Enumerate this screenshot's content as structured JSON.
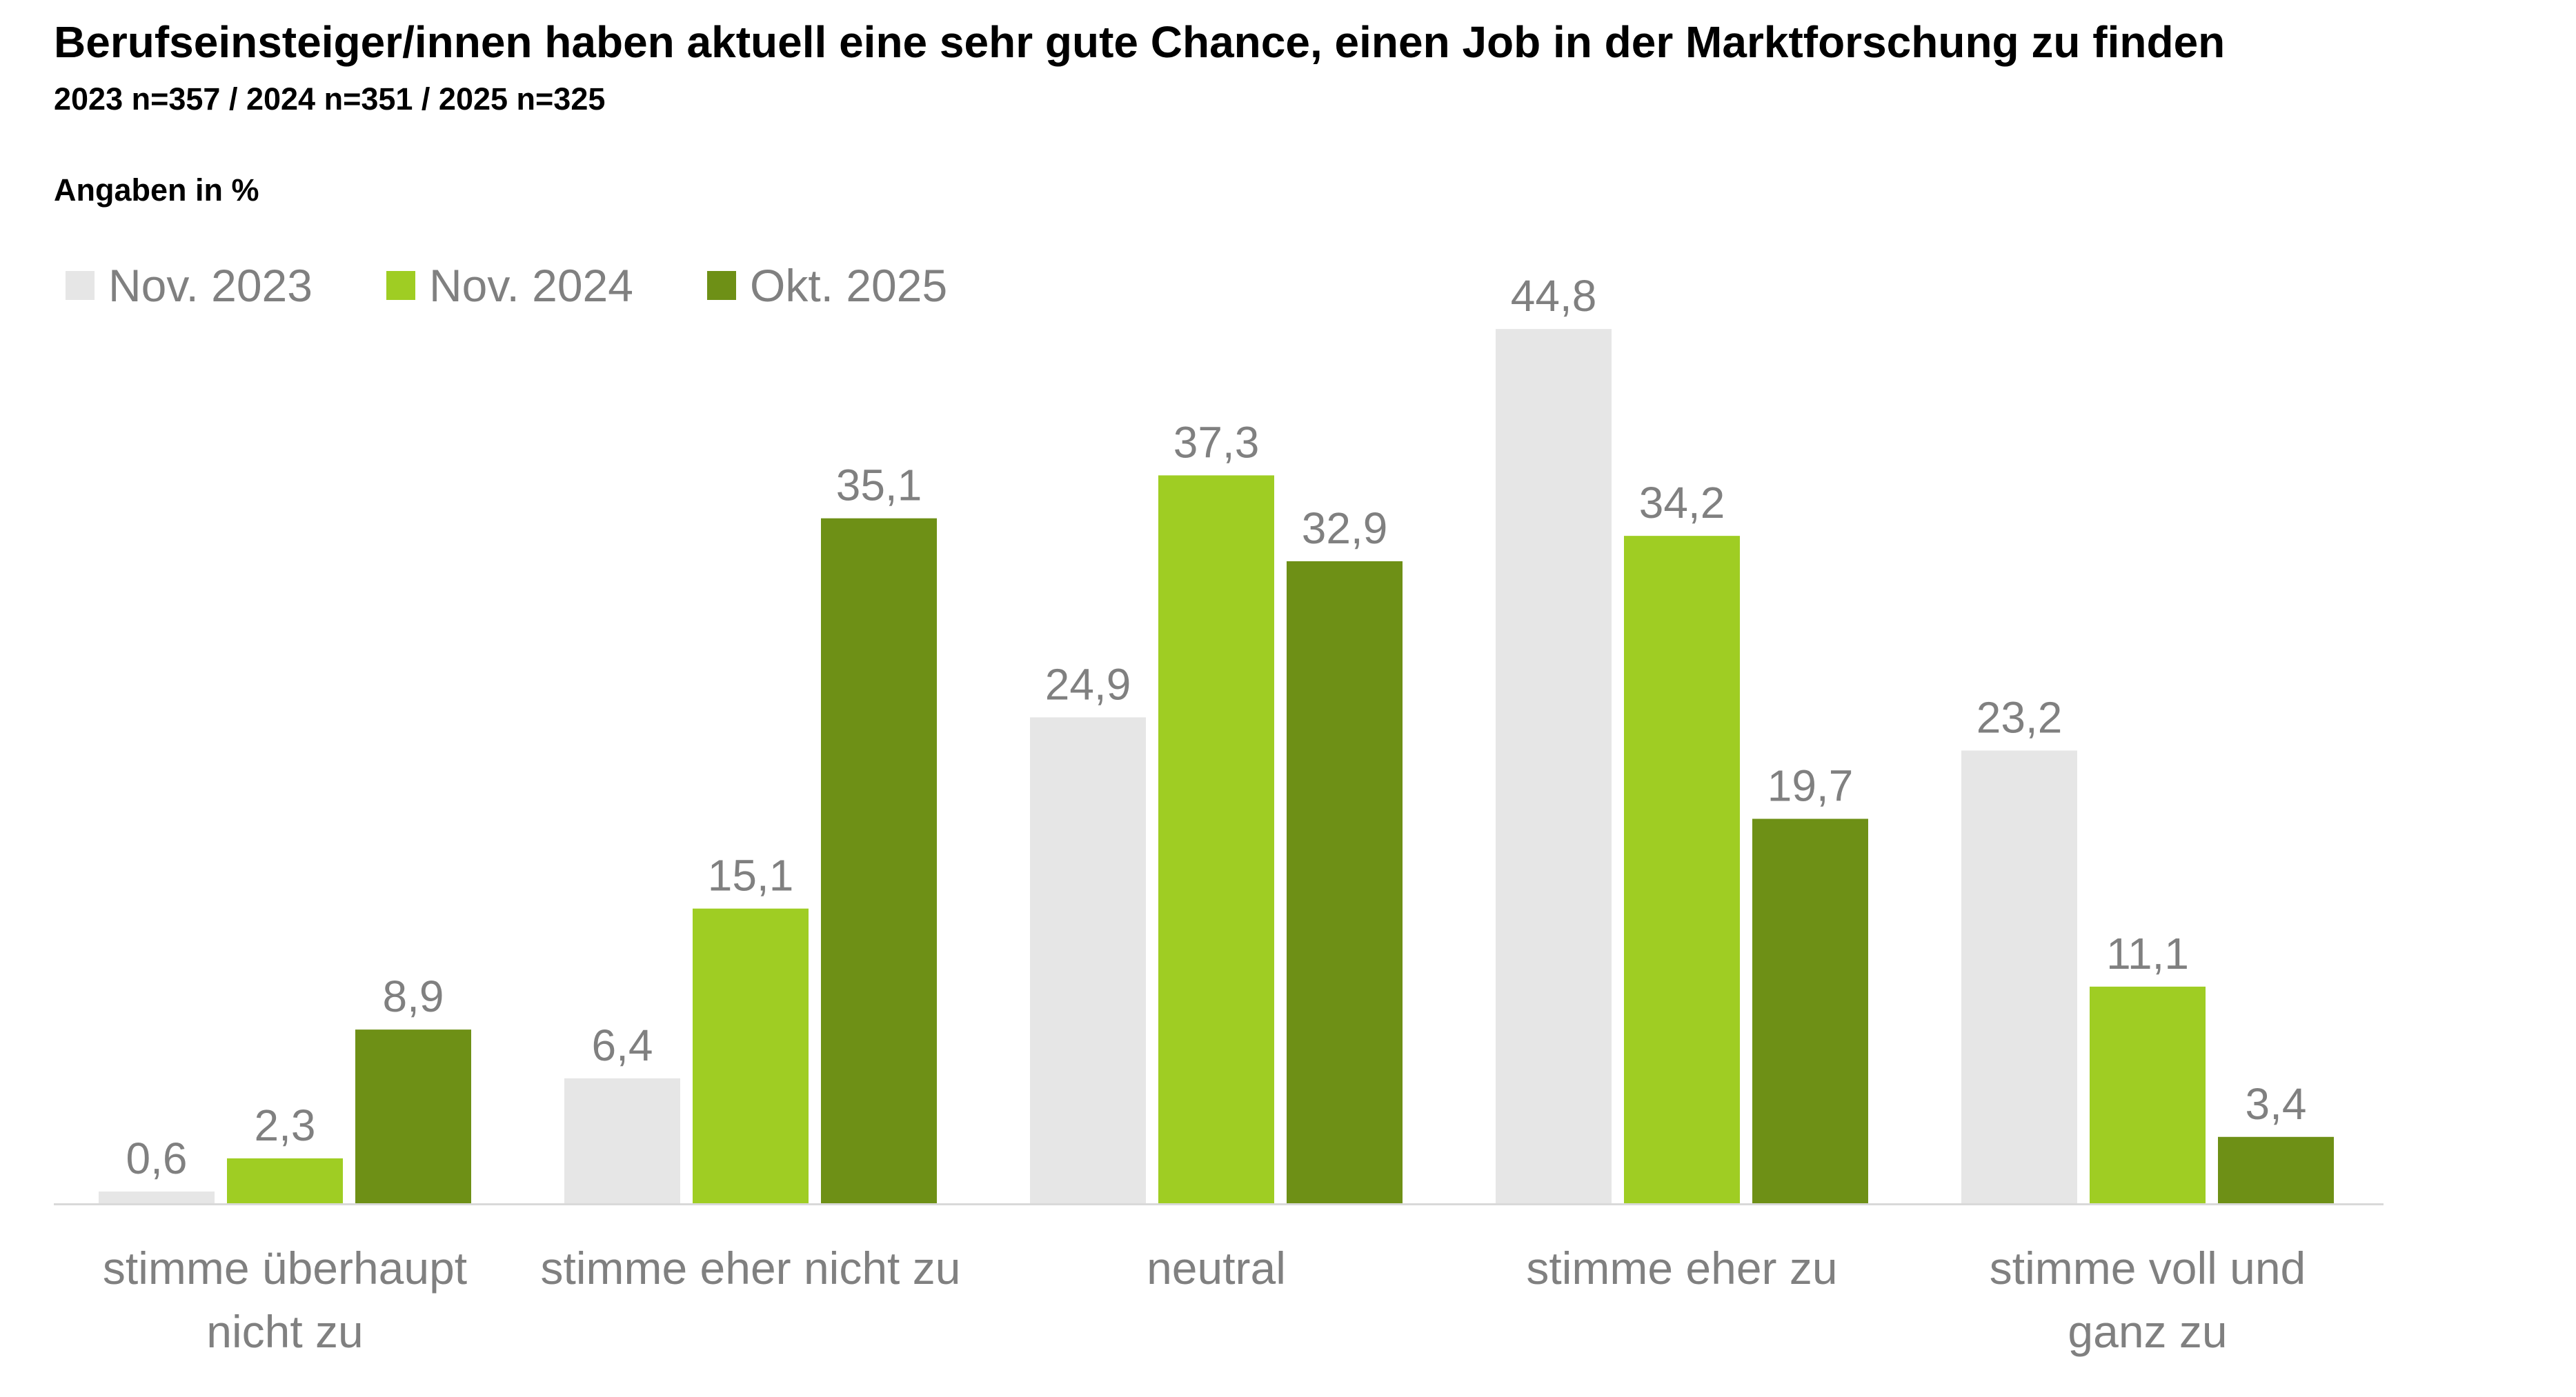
{
  "header": {
    "title": "Berufseinsteiger/innen haben aktuell eine sehr gute Chance, einen Job in der Marktforschung zu finden",
    "subtitle": "2023 n=357 / 2024 n=351 / 2025 n=325",
    "unit_label": "Angaben in %"
  },
  "chart_data": {
    "type": "bar",
    "title": "Berufseinsteiger/innen haben aktuell eine sehr gute Chance, einen Job in der Marktforschung zu finden",
    "subtitle": "2023 n=357 / 2024 n=351 / 2025 n=325",
    "ylabel": "Angaben in %",
    "xlabel": "",
    "ylim": [
      0,
      50
    ],
    "grid": false,
    "legend": "top-left",
    "categories": [
      [
        "stimme überhaupt",
        "nicht zu"
      ],
      [
        "stimme eher nicht zu"
      ],
      [
        "neutral"
      ],
      [
        "stimme eher zu"
      ],
      [
        "stimme voll und",
        "ganz zu"
      ]
    ],
    "series": [
      {
        "name": "Nov. 2023",
        "color": "#e6e6e6",
        "values": [
          0.6,
          6.4,
          24.9,
          44.8,
          23.2
        ],
        "labels": [
          "0,6",
          "6,4",
          "24,9",
          "44,8",
          "23,2"
        ]
      },
      {
        "name": "Nov. 2024",
        "color": "#9fcd23",
        "values": [
          2.3,
          15.1,
          37.3,
          34.2,
          11.1
        ],
        "labels": [
          "2,3",
          "15,1",
          "37,3",
          "34,2",
          "11,1"
        ]
      },
      {
        "name": "Okt. 2025",
        "color": "#6e9016",
        "values": [
          8.9,
          35.1,
          32.9,
          19.7,
          3.4
        ],
        "labels": [
          "8,9",
          "35,1",
          "32,9",
          "19,7",
          "3,4"
        ]
      }
    ],
    "colors": {
      "axis": "#d9d9d9",
      "label_text": "#808080"
    }
  }
}
